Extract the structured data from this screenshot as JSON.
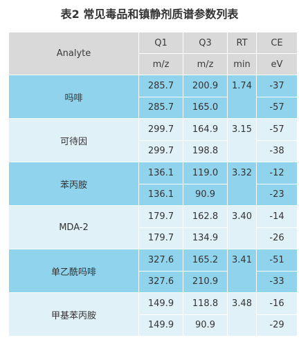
{
  "title": "表2 常见毒品和镇静剂质谱参数列表",
  "header": {
    "analyte": "Analyte",
    "q1": "Q1",
    "q3": "Q3",
    "rt": "RT",
    "ce": "CE",
    "q1_unit": "m/z",
    "q3_unit": "m/z",
    "rt_unit": "min",
    "ce_unit": "eV"
  },
  "rows": [
    {
      "analyte": "吗啡",
      "rt": "1.74",
      "r1": {
        "q1": "285.7",
        "q3": "200.9",
        "ce": "-37"
      },
      "r2": {
        "q1": "285.7",
        "q3": "165.0",
        "ce": "-57"
      }
    },
    {
      "analyte": "可待因",
      "rt": "3.15",
      "r1": {
        "q1": "299.7",
        "q3": "164.9",
        "ce": "-57"
      },
      "r2": {
        "q1": "299.7",
        "q3": "198.8",
        "ce": "-38"
      }
    },
    {
      "analyte": "苯丙胺",
      "rt": "3.32",
      "r1": {
        "q1": "136.1",
        "q3": "119.0",
        "ce": "-12"
      },
      "r2": {
        "q1": "136.1",
        "q3": "90.9",
        "ce": "-23"
      }
    },
    {
      "analyte": "MDA-2",
      "rt": "3.40",
      "r1": {
        "q1": "179.7",
        "q3": "162.8",
        "ce": "-14"
      },
      "r2": {
        "q1": "179.7",
        "q3": "134.9",
        "ce": "-26"
      }
    },
    {
      "analyte": "单乙酰吗啡",
      "rt": "3.41",
      "r1": {
        "q1": "327.6",
        "q3": "165.2",
        "ce": "-51"
      },
      "r2": {
        "q1": "327.6",
        "q3": "210.9",
        "ce": "-33"
      }
    },
    {
      "analyte": "甲基苯丙胺",
      "rt": "3.48",
      "r1": {
        "q1": "149.9",
        "q3": "118.8",
        "ce": "-16"
      },
      "r2": {
        "q1": "149.9",
        "q3": "90.9",
        "ce": "-29"
      }
    }
  ]
}
